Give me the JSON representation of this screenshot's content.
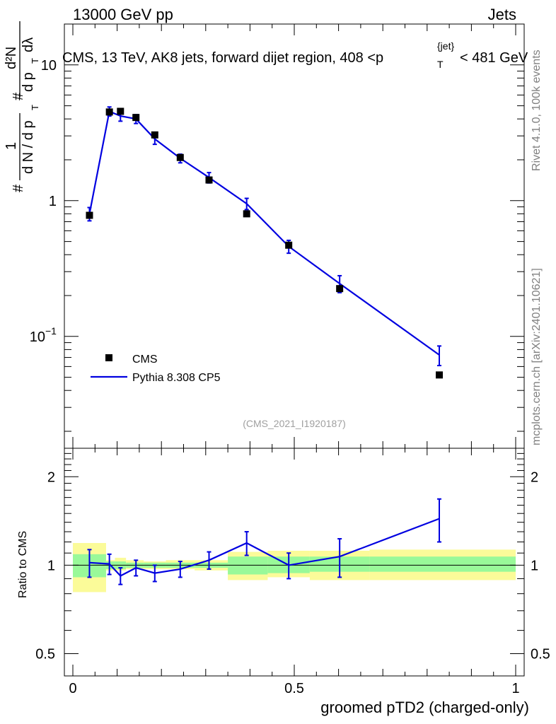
{
  "header": {
    "left": "13000 GeV pp",
    "right": "Jets",
    "title_main": "CMS, 13 TeV, AK8 jets, forward dijet region, 408 <p",
    "title_sup": "{jet}",
    "title_sub": "T",
    "title_end": "< 481 GeV"
  },
  "side_text": {
    "rivet": "Rivet 4.1.0,  100k events",
    "mcplots": "mcplots.cern.ch [arXiv:2401.10621]"
  },
  "watermark": "(CMS_2021_I1920187)",
  "ylabel_top": {
    "hash1": "#",
    "frac_num": "1",
    "frac_den": "d N / d p",
    "sub_T": "T",
    "hash2": "#",
    "num2": "d²N",
    "den2": "d p",
    "den2_sub": "T",
    "den2_end": "dλ"
  },
  "ylabel_bottom": "Ratio to CMS",
  "xlabel": "groomed pTD2 (charged-only)",
  "legend": {
    "data_label": "CMS",
    "mc_label": "Pythia 8.308 CP5"
  },
  "colors": {
    "mc": "#0000e0",
    "band_inner": "#99f999",
    "band_outer": "#fbfb99"
  },
  "chart_data": {
    "type": "scatter",
    "xlim": [
      0,
      1
    ],
    "x_ticks": [
      "0",
      "0.5",
      "1"
    ],
    "x_tick_values": [
      0,
      0.5,
      1
    ],
    "top_panel": {
      "yscale": "log",
      "ylim": [
        0.015,
        20
      ],
      "y_ticks": [
        {
          "value": 10,
          "label": "10"
        },
        {
          "value": 1,
          "label": "1"
        },
        {
          "value": 0.1,
          "label": "10",
          "exp": "−1"
        }
      ],
      "data": {
        "name": "CMS",
        "x": [
          0.0375,
          0.0825,
          0.1075,
          0.1425,
          0.185,
          0.2425,
          0.3075,
          0.3925,
          0.4875,
          0.6025,
          0.8275
        ],
        "y": [
          0.78,
          4.5,
          4.55,
          4.1,
          3.05,
          2.08,
          1.42,
          0.8,
          0.47,
          0.225,
          0.052
        ]
      },
      "mc": {
        "name": "Pythia 8.308 CP5",
        "x": [
          0.0375,
          0.0825,
          0.1075,
          0.1425,
          0.185,
          0.2425,
          0.3075,
          0.3925,
          0.4875,
          0.6025,
          0.8275
        ],
        "y": [
          0.8,
          4.55,
          4.2,
          4.0,
          2.85,
          2.05,
          1.48,
          0.95,
          0.46,
          0.245,
          0.073
        ],
        "err": [
          0.09,
          0.35,
          0.35,
          0.3,
          0.25,
          0.15,
          0.13,
          0.09,
          0.05,
          0.035,
          0.012
        ]
      }
    },
    "bottom_panel": {
      "yscale": "log",
      "ylim": [
        0.42,
        2.5
      ],
      "y_ticks": [
        {
          "value": 2,
          "label": "2"
        },
        {
          "value": 1,
          "label": "1"
        },
        {
          "value": 0.5,
          "label": "0.5"
        }
      ],
      "band_edges": [
        0.0,
        0.075,
        0.095,
        0.12,
        0.16,
        0.21,
        0.275,
        0.35,
        0.44,
        0.535,
        0.67,
        1.0
      ],
      "band_inner": [
        [
          0.91,
          1.09
        ],
        [
          0.97,
          1.03
        ],
        [
          0.97,
          1.03
        ],
        [
          0.98,
          1.02
        ],
        [
          0.98,
          1.02
        ],
        [
          0.98,
          1.02
        ],
        [
          0.98,
          1.02
        ],
        [
          0.93,
          1.07
        ],
        [
          0.94,
          1.07
        ],
        [
          0.95,
          1.07
        ],
        [
          0.95,
          1.07
        ]
      ],
      "band_outer": [
        [
          0.81,
          1.19
        ],
        [
          0.96,
          1.04
        ],
        [
          0.96,
          1.06
        ],
        [
          0.97,
          1.04
        ],
        [
          0.97,
          1.03
        ],
        [
          0.97,
          1.04
        ],
        [
          0.96,
          1.04
        ],
        [
          0.89,
          1.11
        ],
        [
          0.91,
          1.12
        ],
        [
          0.89,
          1.12
        ],
        [
          0.89,
          1.13
        ]
      ],
      "ratio": {
        "x": [
          0.0375,
          0.0825,
          0.1075,
          0.1425,
          0.185,
          0.2425,
          0.3075,
          0.3925,
          0.4875,
          0.6025,
          0.8275
        ],
        "y": [
          1.02,
          1.01,
          0.92,
          0.98,
          0.94,
          0.97,
          1.04,
          1.19,
          1.0,
          1.07,
          1.44
        ],
        "err": [
          0.11,
          0.08,
          0.06,
          0.06,
          0.06,
          0.06,
          0.07,
          0.11,
          0.1,
          0.16,
          0.24
        ]
      }
    }
  }
}
